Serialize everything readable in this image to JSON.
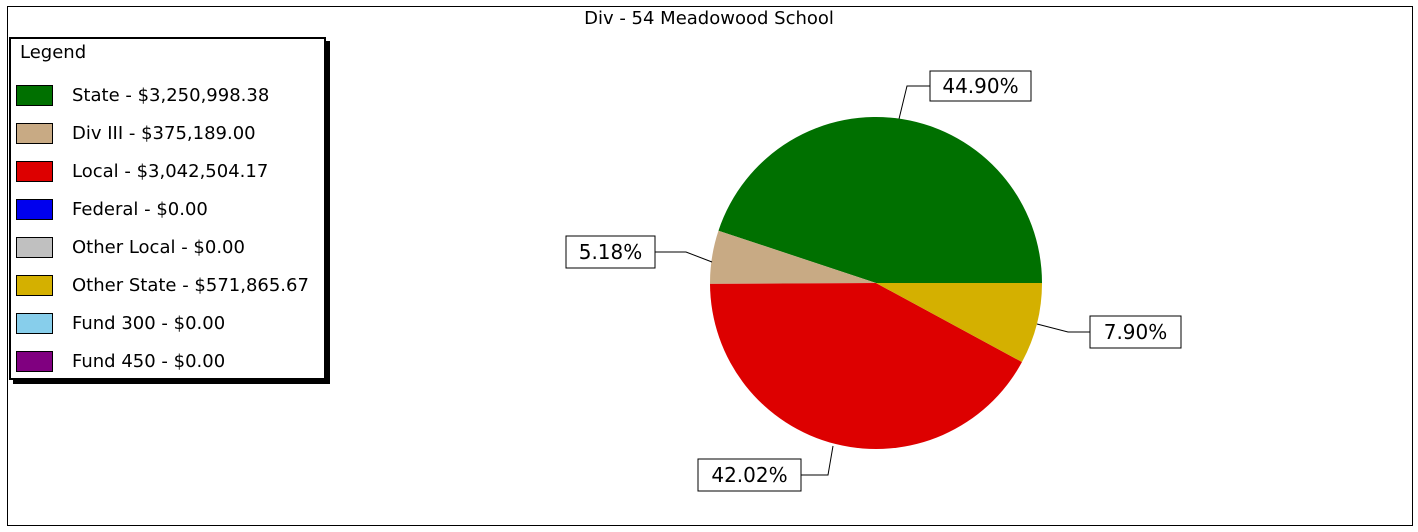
{
  "chart_data": {
    "type": "pie",
    "title": "Div - 54  Meadowood School",
    "legend_title": "Legend",
    "legend_position": "top-left",
    "slices": [
      {
        "label": "State - $3,250,998.38",
        "value": 3250998.38,
        "percent_label": "44.90%",
        "color": "#007000"
      },
      {
        "label": "Div III - $375,189.00",
        "value": 375189.0,
        "percent_label": "5.18%",
        "color": "#c8aa84"
      },
      {
        "label": "Local - $3,042,504.17",
        "value": 3042504.17,
        "percent_label": "42.02%",
        "color": "#dd0000"
      },
      {
        "label": "Federal - $0.00",
        "value": 0,
        "percent_label": "",
        "color": "#0000ee"
      },
      {
        "label": "Other Local - $0.00",
        "value": 0,
        "percent_label": "",
        "color": "#c0c0c0"
      },
      {
        "label": "Other State - $571,865.67",
        "value": 571865.67,
        "percent_label": "7.90%",
        "color": "#d4b000"
      },
      {
        "label": "Fund 300 - $0.00",
        "value": 0,
        "percent_label": "",
        "color": "#87ceeb"
      },
      {
        "label": "Fund 450 - $0.00",
        "value": 0,
        "percent_label": "",
        "color": "#800080"
      }
    ]
  }
}
